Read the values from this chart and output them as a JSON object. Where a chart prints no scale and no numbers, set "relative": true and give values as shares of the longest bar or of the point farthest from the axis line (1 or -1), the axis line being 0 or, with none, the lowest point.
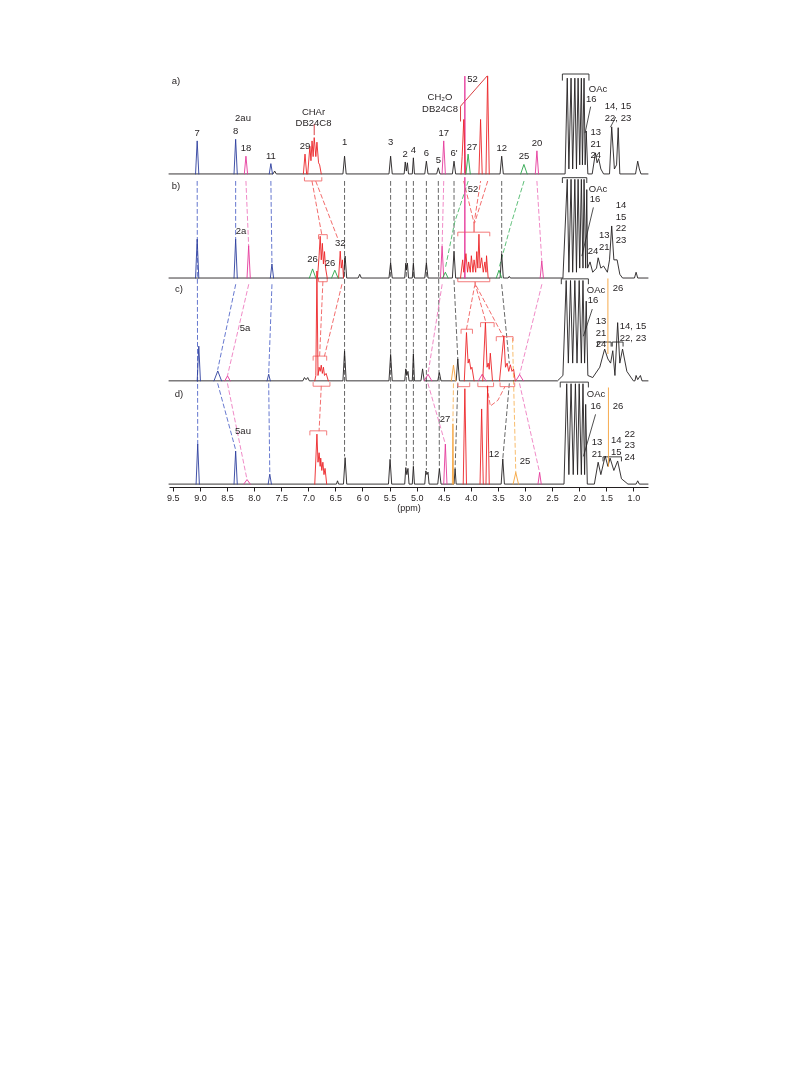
{
  "chart_data": {
    "type": "line",
    "relative": true,
    "xlabel": "(ppm)",
    "xlim": [
      9.57,
      0.73
    ],
    "xticks": [
      9.5,
      {
        "value": 9,
        "label": "9.0"
      },
      8.5,
      {
        "value": 8,
        "label": "8.0"
      },
      7.5,
      {
        "value": 7,
        "label": "7.0"
      },
      6.5,
      {
        "value": 6,
        "label": "6 0"
      },
      5.5,
      {
        "value": 5,
        "label": "5.0"
      },
      4.5,
      {
        "value": 4,
        "label": "4.0"
      },
      3.5,
      {
        "value": 3,
        "label": "3.0"
      },
      2.5,
      {
        "value": 2,
        "label": "2.0"
      },
      1.5,
      {
        "value": 1,
        "label": "1.0"
      }
    ],
    "tick_labels": "x",
    "series": [
      {
        "color": "#555555",
        "line_style": "dashed",
        "x": [
          6.33,
          6.33,
          null,
          5.48,
          5.48,
          null,
          5.19,
          5.19,
          null,
          5.06,
          5.06,
          null,
          4.82,
          4.82,
          null,
          4.6,
          4.58,
          null,
          4.31,
          4.31,
          null,
          3.43,
          3.43
        ],
        "values": [
          0.74,
          0.075,
          null,
          0.74,
          0.07,
          null,
          0.74,
          0.05,
          null,
          0.74,
          0.053,
          null,
          0.74,
          0.042,
          null,
          0.74,
          0.044,
          null,
          0.74,
          0.571,
          null,
          0.74,
          0.564
        ]
      },
      {
        "color": "#565656",
        "line_style": "dashed",
        "x": [
          4.31,
          4.24,
          null,
          3.43,
          3.29
        ],
        "values": [
          0.5,
          0.31,
          null,
          0.49,
          0.3
        ]
      },
      {
        "color": "#575757",
        "line_style": "dashed",
        "x": [
          4.24,
          4.29,
          null,
          3.29,
          3.41
        ],
        "values": [
          0.25,
          0.044,
          null,
          0.25,
          0.068
        ]
      },
      {
        "color": "#5468c8",
        "line_style": "dashed",
        "x": [
          9.05,
          9.04,
          null,
          8.34,
          8.34,
          null,
          7.69,
          7.67
        ],
        "values": [
          0.74,
          0.104,
          null,
          0.74,
          0.6,
          null,
          0.74,
          0.54
        ]
      },
      {
        "color": "#5569c9",
        "line_style": "dashed",
        "x": [
          8.34,
          8.67,
          null,
          7.67,
          7.73
        ],
        "values": [
          0.49,
          0.285,
          null,
          0.49,
          0.275
        ]
      },
      {
        "color": "#566aca",
        "line_style": "dashed",
        "x": [
          8.67,
          8.34,
          null,
          7.73,
          7.71
        ],
        "values": [
          0.25,
          0.09,
          null,
          0.25,
          0.031
        ]
      },
      {
        "color": "#ee7cbf",
        "line_style": "dashed",
        "x": [
          8.15,
          8.1,
          null,
          4.5,
          4.53,
          null,
          2.78,
          2.69
        ],
        "values": [
          0.74,
          0.584,
          null,
          0.74,
          0.583,
          null,
          0.74,
          0.547
        ]
      },
      {
        "color": "#ee7dc0",
        "line_style": "dashed",
        "x": [
          8.1,
          8.49,
          null,
          4.53,
          4.79,
          null,
          2.69,
          3.1
        ],
        "values": [
          0.49,
          0.27,
          null,
          0.49,
          0.274,
          null,
          0.49,
          0.272
        ]
      },
      {
        "color": "#ee7ec1",
        "line_style": "dashed",
        "x": [
          8.49,
          8.13,
          null,
          4.79,
          4.47,
          null,
          3.1,
          2.73
        ],
        "values": [
          0.25,
          0.018,
          null,
          0.25,
          0.104,
          null,
          0.25,
          0.035
        ]
      },
      {
        "color": "#f05a5a",
        "line_style": "dashed",
        "x": [
          6.93,
          6.75,
          null,
          4.13,
          3.94,
          3.82
        ],
        "values": [
          0.74,
          0.611,
          null,
          0.74,
          0.639,
          0.74
        ]
      },
      {
        "color": "#f05b5b",
        "line_style": "dashed",
        "x": [
          6.86,
          6.45,
          null,
          3.69,
          3.93
        ],
        "values": [
          0.74,
          0.6,
          null,
          0.74,
          0.639
        ]
      },
      {
        "color": "#f05c5c",
        "line_style": "dashed",
        "x": [
          6.73,
          6.79,
          null,
          6.38,
          6.7,
          null,
          4.08,
          3.93,
          3.91,
          3.72
        ],
        "values": [
          0.497,
          0.317,
          null,
          0.49,
          0.317,
          null,
          0.382,
          0.487,
          0.487,
          0.398
        ]
      },
      {
        "color": "#f05d5d",
        "line_style": "dashed",
        "x": [
          3.9,
          3.4
        ],
        "values": [
          0.487,
          0.364
        ]
      },
      {
        "color": "#f05e5e",
        "line_style": "dashed",
        "x": [
          6.76,
          6.8,
          null,
          3.7,
          3.64,
          3.5,
          3.37
        ],
        "values": [
          0.244,
          0.136,
          null,
          0.243,
          0.196,
          0.21,
          0.243
        ]
      },
      {
        "color": "#4cb86a",
        "line_style": "dashed",
        "x": [
          4.05,
          4.3,
          4.47,
          null,
          3.02,
          3.25,
          3.48
        ],
        "values": [
          0.74,
          0.64,
          0.53,
          null,
          0.74,
          0.64,
          0.53
        ]
      },
      {
        "color": "#f7b55e",
        "line_style": "dashed",
        "x": [
          4.32,
          4.33,
          null,
          3.23,
          3.17
        ],
        "values": [
          0.25,
          0.16,
          null,
          0.36,
          0.035
        ]
      },
      {
        "color": "#262626",
        "x": [
          2.31,
          2.31,
          1.82,
          1.82
        ],
        "values": [
          0.985,
          1.0,
          1.0,
          0.985
        ]
      },
      {
        "color": "#272727",
        "x": [
          2.31,
          2.31,
          1.86,
          1.86
        ],
        "values": [
          0.737,
          0.749,
          0.749,
          0.737
        ]
      },
      {
        "color": "#282828",
        "x": [
          2.33,
          2.33,
          1.83,
          1.83,
          null,
          1.66,
          1.66,
          1.41,
          1.41,
          null,
          1.39,
          1.39,
          1.19,
          1.19
        ],
        "values": [
          0.492,
          0.504,
          0.504,
          0.492,
          null,
          0.341,
          0.351,
          0.351,
          0.341,
          null,
          0.341,
          0.351,
          0.351,
          0.341
        ]
      },
      {
        "color": "#292929",
        "x": [
          2.35,
          2.35,
          1.83,
          1.83,
          null,
          1.56,
          1.56,
          1.22,
          1.22
        ],
        "values": [
          0.242,
          0.254,
          0.254,
          0.242,
          null,
          0.063,
          0.073,
          0.073,
          0.063
        ]
      },
      {
        "color": "#f26a6a",
        "x": [
          7.07,
          7.07,
          6.75,
          6.75
        ],
        "values": [
          0.749,
          0.741,
          0.741,
          0.749
        ]
      },
      {
        "color": "#f26b6b",
        "x": [
          6.81,
          6.81,
          6.65,
          6.65,
          null,
          4.24,
          4.24,
          3.94,
          3.94,
          3.94,
          3.65,
          3.65
        ],
        "values": [
          0.601,
          0.611,
          0.611,
          0.601,
          null,
          0.608,
          0.617,
          0.617,
          0.639,
          0.617,
          0.617,
          0.608
        ]
      },
      {
        "color": "#f26c6c",
        "x": [
          6.81,
          6.81,
          6.65,
          6.65,
          null,
          4.24,
          4.24,
          3.92,
          3.92,
          3.92,
          3.65,
          3.65
        ],
        "values": [
          0.505,
          0.497,
          0.497,
          0.505,
          null,
          0.505,
          0.497,
          0.497,
          0.487,
          0.497,
          0.497,
          0.505
        ]
      },
      {
        "color": "#f26d6d",
        "x": [
          6.91,
          6.91,
          6.66,
          6.66,
          null,
          4.18,
          4.18,
          3.97,
          3.97,
          null,
          3.82,
          3.82,
          3.57,
          3.57,
          null,
          3.53,
          3.53,
          3.22,
          3.22
        ],
        "values": [
          0.307,
          0.317,
          0.317,
          0.307,
          null,
          0.372,
          0.382,
          0.382,
          0.372,
          null,
          0.388,
          0.398,
          0.398,
          0.388,
          null,
          0.354,
          0.364,
          0.364,
          0.354
        ]
      },
      {
        "color": "#f26e6e",
        "x": [
          6.91,
          6.91,
          6.6,
          6.6,
          null,
          4.24,
          4.24,
          4.02,
          4.02,
          null,
          3.87,
          3.87,
          3.58,
          3.58,
          null,
          3.46,
          3.46,
          3.19,
          3.19
        ],
        "values": [
          0.253,
          0.244,
          0.244,
          0.253,
          null,
          0.252,
          0.243,
          0.243,
          0.252,
          null,
          0.252,
          0.243,
          0.243,
          0.252,
          null,
          0.252,
          0.243,
          0.243,
          0.252
        ]
      },
      {
        "color": "#f26f6f",
        "x": [
          6.97,
          6.97,
          6.66,
          6.66
        ],
        "values": [
          0.126,
          0.136,
          0.136,
          0.126
        ]
      },
      {
        "color": "#3b3b3b",
        "x": [
          1.79,
          1.89,
          null,
          1.33,
          1.42,
          null,
          1.74,
          1.95,
          null,
          1.76,
          1.92,
          null,
          1.7,
          1.92
        ],
        "values": [
          0.92,
          0.858,
          null,
          0.895,
          0.872,
          null,
          0.676,
          0.56,
          null,
          0.43,
          0.366,
          null,
          0.175,
          0.075
        ]
      },
      {
        "color": "#d42a2e",
        "x": [
          6.89,
          6.89,
          null,
          4.19,
          4.19,
          3.7
        ],
        "values": [
          0.853,
          0.878,
          null,
          0.886,
          0.922,
          0.995
        ]
      },
      {
        "color": "#231f20",
        "x": [
          9.57,
          7.65,
          7.62,
          7.59,
          6.36,
          6.33,
          6.3,
          5.51,
          5.48,
          5.45,
          5.23,
          5.21,
          5.19,
          5.17,
          5.15,
          5.08,
          5.06,
          5.04,
          4.85,
          4.82,
          4.79,
          4.63,
          4.6,
          4.57,
          4.34,
          4.31,
          4.28,
          3.46,
          3.43,
          3.4,
          2.26,
          2.22,
          2.19,
          2.15,
          2.12,
          2.08,
          2.05,
          2.02,
          1.99,
          1.96,
          1.94,
          1.91,
          1.89,
          1.87,
          1.84,
          1.76,
          1.7,
          1.67,
          1.64,
          1.6,
          1.55,
          1.44,
          1.4,
          1.35,
          1.31,
          1.28,
          1.25,
          0.96,
          0.92,
          0.89,
          0.86,
          0.73
        ],
        "values": [
          0.758,
          0.758,
          0.765,
          0.758,
          0.758,
          0.801,
          0.758,
          0.758,
          0.801,
          0.758,
          0.758,
          0.787,
          0.765,
          0.785,
          0.758,
          0.758,
          0.797,
          0.758,
          0.758,
          0.789,
          0.758,
          0.758,
          0.773,
          0.758,
          0.758,
          0.789,
          0.758,
          0.758,
          0.801,
          0.758,
          0.758,
          0.99,
          0.77,
          0.99,
          0.77,
          0.99,
          0.77,
          0.99,
          0.78,
          0.99,
          0.78,
          0.99,
          0.78,
          0.862,
          0.758,
          0.758,
          0.809,
          0.785,
          0.795,
          0.77,
          0.758,
          0.758,
          0.872,
          0.77,
          0.78,
          0.87,
          0.758,
          0.758,
          0.789,
          0.77,
          0.758,
          0.758
        ]
      },
      {
        "color": "#231f20",
        "x": [
          9.57,
          6.35,
          6.32,
          6.29,
          6.08,
          6.05,
          6.02,
          5.51,
          5.48,
          5.45,
          5.22,
          5.2,
          5.19,
          5.17,
          5.15,
          5.08,
          5.06,
          5.04,
          4.85,
          4.82,
          4.79,
          4.34,
          4.31,
          4.28,
          3.46,
          3.43,
          3.4,
          3.31,
          3.29,
          3.27,
          2.3,
          2.22,
          2.19,
          2.15,
          2.12,
          2.08,
          2.05,
          2.02,
          1.99,
          1.96,
          1.93,
          1.91,
          1.88,
          1.86,
          1.845,
          1.8,
          1.75,
          1.68,
          1.65,
          1.6,
          1.55,
          1.48,
          1.44,
          1.4,
          1.36,
          1.3,
          1.25,
          1.2,
          0.98,
          0.95,
          0.92,
          0.73
        ],
        "values": [
          0.506,
          0.506,
          0.559,
          0.506,
          0.506,
          0.515,
          0.506,
          0.506,
          0.543,
          0.506,
          0.506,
          0.542,
          0.525,
          0.542,
          0.506,
          0.506,
          0.542,
          0.506,
          0.506,
          0.543,
          0.506,
          0.506,
          0.571,
          0.506,
          0.506,
          0.564,
          0.506,
          0.506,
          0.51,
          0.506,
          0.506,
          0.745,
          0.52,
          0.745,
          0.52,
          0.745,
          0.52,
          0.745,
          0.53,
          0.745,
          0.53,
          0.745,
          0.53,
          0.72,
          0.53,
          0.545,
          0.52,
          0.53,
          0.555,
          0.53,
          0.535,
          0.52,
          0.55,
          0.632,
          0.55,
          0.55,
          0.515,
          0.506,
          0.506,
          0.52,
          0.506,
          0.506
        ]
      },
      {
        "color": "#231f20",
        "x": [
          9.57,
          7.1,
          7.07,
          7.04,
          7.01,
          6.98,
          6.36,
          6.33,
          6.3,
          5.51,
          5.48,
          5.45,
          5.22,
          5.2,
          5.18,
          5.16,
          5.14,
          5.08,
          5.06,
          5.04,
          4.92,
          4.89,
          4.86,
          4.61,
          4.58,
          4.55,
          4.27,
          4.24,
          4.21,
          2.4,
          2.3,
          2.24,
          2.2,
          2.16,
          2.12,
          2.08,
          2.04,
          2.0,
          1.96,
          1.93,
          1.9,
          1.87,
          1.84,
          1.75,
          1.62,
          1.53,
          1.47,
          1.42,
          1.38,
          1.34,
          1.29,
          1.25,
          1.2,
          1.12,
          1.0,
          0.97,
          0.95,
          0.92,
          0.87,
          0.84,
          0.73
        ],
        "values": [
          0.257,
          0.257,
          0.265,
          0.26,
          0.265,
          0.257,
          0.257,
          0.329,
          0.257,
          0.257,
          0.321,
          0.257,
          0.257,
          0.286,
          0.27,
          0.28,
          0.257,
          0.257,
          0.322,
          0.257,
          0.257,
          0.286,
          0.257,
          0.257,
          0.277,
          0.257,
          0.257,
          0.31,
          0.257,
          0.257,
          0.27,
          0.5,
          0.3,
          0.5,
          0.3,
          0.5,
          0.3,
          0.5,
          0.3,
          0.5,
          0.3,
          0.45,
          0.27,
          0.265,
          0.29,
          0.334,
          0.31,
          0.3,
          0.33,
          0.27,
          0.398,
          0.3,
          0.334,
          0.28,
          0.257,
          0.257,
          0.27,
          0.26,
          0.27,
          0.257,
          0.257
        ]
      },
      {
        "color": "#231f20",
        "x": [
          9.57,
          6.48,
          6.46,
          6.44,
          6.35,
          6.32,
          6.29,
          5.52,
          5.49,
          5.46,
          5.22,
          5.2,
          5.18,
          5.16,
          5.14,
          5.08,
          5.06,
          5.04,
          4.85,
          4.83,
          4.81,
          4.79,
          4.77,
          4.61,
          4.58,
          4.55,
          4.31,
          4.29,
          4.27,
          3.44,
          3.41,
          3.38,
          2.28,
          2.23,
          2.19,
          2.15,
          2.11,
          2.07,
          2.03,
          2.0,
          1.96,
          1.93,
          1.9,
          1.88,
          1.85,
          1.72,
          1.65,
          1.6,
          1.52,
          1.47,
          1.43,
          1.36,
          1.29,
          1.22,
          1.1,
          0.95,
          0.92,
          0.89,
          0.73
        ],
        "values": [
          0.007,
          0.007,
          0.015,
          0.007,
          0.007,
          0.071,
          0.007,
          0.007,
          0.067,
          0.007,
          0.007,
          0.047,
          0.03,
          0.045,
          0.007,
          0.007,
          0.05,
          0.007,
          0.007,
          0.039,
          0.03,
          0.036,
          0.007,
          0.007,
          0.044,
          0.007,
          0.007,
          0.044,
          0.007,
          0.007,
          0.068,
          0.007,
          0.007,
          0.25,
          0.03,
          0.25,
          0.03,
          0.25,
          0.03,
          0.25,
          0.03,
          0.25,
          0.03,
          0.2,
          0.007,
          0.007,
          0.06,
          0.03,
          0.075,
          0.05,
          0.07,
          0.04,
          0.063,
          0.02,
          0.007,
          0.007,
          0.015,
          0.007,
          0.007
        ]
      },
      {
        "color": "#2c3e9e",
        "x": [
          9.08,
          9.05,
          9.02,
          null,
          8.37,
          8.34,
          8.31,
          null,
          7.72,
          7.69,
          7.66,
          null,
          9.08,
          9.05,
          9.02,
          null,
          8.37,
          8.34,
          8.31,
          null,
          7.7,
          7.67,
          7.64,
          null,
          9.05,
          9.02,
          8.99,
          null,
          8.74,
          8.67,
          8.6,
          null,
          7.76,
          7.73,
          7.7,
          null,
          9.07,
          9.04,
          9.01,
          null,
          8.37,
          8.34,
          8.31,
          null,
          7.74,
          7.71,
          7.68
        ],
        "values": [
          0.758,
          0.838,
          0.758,
          null,
          0.758,
          0.842,
          0.758,
          null,
          0.758,
          0.783,
          0.758,
          null,
          0.506,
          0.6,
          0.506,
          null,
          0.506,
          0.6,
          0.506,
          null,
          0.506,
          0.54,
          0.506,
          null,
          0.257,
          0.341,
          0.257,
          null,
          0.257,
          0.281,
          0.257,
          null,
          0.257,
          0.273,
          0.257,
          null,
          0.007,
          0.104,
          0.007,
          null,
          0.007,
          0.087,
          0.007,
          null,
          0.007,
          0.031,
          0.007
        ]
      },
      {
        "color": "#e5399b",
        "x": [
          8.18,
          8.15,
          8.12,
          null,
          4.53,
          4.5,
          4.47,
          null,
          4.115,
          4.11,
          4.105,
          null,
          2.81,
          2.78,
          2.75,
          null,
          8.13,
          8.1,
          8.07,
          null,
          4.56,
          4.53,
          4.5,
          null,
          4.115,
          4.11,
          4.105,
          null,
          2.72,
          2.69,
          2.66,
          null,
          8.54,
          8.49,
          8.44,
          null,
          4.86,
          4.79,
          4.72,
          null,
          3.86,
          3.79,
          3.72,
          null,
          3.17,
          3.1,
          3.03,
          null,
          8.19,
          8.13,
          8.07,
          null,
          4.5,
          4.47,
          4.44,
          null,
          2.76,
          2.73,
          2.7
        ],
        "values": [
          0.758,
          0.801,
          0.758,
          null,
          0.758,
          0.838,
          0.758,
          null,
          0.758,
          0.995,
          0.758,
          null,
          0.758,
          0.814,
          0.758,
          null,
          0.506,
          0.584,
          0.506,
          null,
          0.506,
          0.583,
          0.506,
          null,
          0.506,
          0.75,
          0.506,
          null,
          0.506,
          0.547,
          0.506,
          null,
          0.257,
          0.269,
          0.257,
          null,
          0.257,
          0.273,
          0.257,
          null,
          0.257,
          0.273,
          0.257,
          null,
          0.257,
          0.272,
          0.257,
          null,
          0.007,
          0.018,
          0.007,
          null,
          0.007,
          0.104,
          0.007,
          null,
          0.007,
          0.035,
          0.007
        ]
      },
      {
        "color": "#ec2427",
        "x": [
          7.09,
          7.06,
          7.03,
          null,
          7.01,
          6.97,
          6.95,
          6.93,
          6.91,
          6.89,
          6.86,
          6.84,
          6.81,
          6.79,
          6.76,
          null,
          4.18,
          4.16,
          4.13,
          4.1,
          null,
          3.85,
          3.82,
          3.79,
          null,
          3.72,
          3.69,
          3.66,
          null,
          6.83,
          6.8,
          6.78,
          6.76,
          6.74,
          6.72,
          6.7,
          6.68,
          6.65,
          null,
          6.44,
          6.41,
          6.39,
          6.37,
          6.35,
          null,
          4.19,
          4.15,
          4.13,
          4.09,
          4.06,
          4.04,
          4.01,
          3.99,
          3.96,
          3.94,
          3.91,
          3.89,
          3.87,
          3.85,
          3.83,
          3.8,
          3.77,
          3.74,
          3.72,
          3.71,
          3.68,
          null,
          6.88,
          6.86,
          6.84,
          6.82,
          6.8,
          6.78,
          6.76,
          6.74,
          6.72,
          6.7,
          6.67,
          6.63,
          null,
          4.12,
          4.08,
          4.05,
          4.03,
          4.0,
          3.98,
          3.94,
          null,
          3.78,
          3.73,
          3.7,
          3.68,
          3.66,
          3.64,
          3.6,
          null,
          3.47,
          3.39,
          3.36,
          3.33,
          3.3,
          3.27,
          3.24,
          3.21,
          3.18,
          null,
          6.88,
          6.84,
          6.82,
          6.8,
          6.78,
          6.77,
          6.75,
          6.73,
          6.71,
          6.69,
          6.66,
          null,
          4.14,
          4.11,
          4.08,
          null,
          3.83,
          3.8,
          3.77,
          null,
          3.72,
          3.69,
          3.66
        ],
        "values": [
          0.758,
          0.806,
          0.758,
          null,
          0.758,
          0.825,
          0.79,
          0.838,
          0.8,
          0.846,
          0.8,
          0.835,
          0.785,
          0.78,
          0.758,
          null,
          0.758,
          0.8,
          0.89,
          0.758,
          null,
          0.758,
          0.89,
          0.758,
          null,
          0.758,
          0.995,
          0.758,
          null,
          0.506,
          0.56,
          0.607,
          0.55,
          0.59,
          0.54,
          0.57,
          0.53,
          0.506,
          null,
          0.506,
          0.571,
          0.53,
          0.55,
          0.506,
          null,
          0.506,
          0.55,
          0.52,
          0.565,
          0.52,
          0.545,
          0.52,
          0.56,
          0.52,
          0.55,
          0.52,
          0.57,
          0.53,
          0.612,
          0.53,
          0.555,
          0.52,
          0.545,
          0.52,
          0.56,
          0.506,
          null,
          0.257,
          0.27,
          0.523,
          0.27,
          0.29,
          0.28,
          0.295,
          0.275,
          0.29,
          0.27,
          0.275,
          0.257,
          null,
          0.257,
          0.374,
          0.3,
          0.31,
          0.285,
          0.29,
          0.257,
          null,
          0.257,
          0.398,
          0.29,
          0.3,
          0.285,
          0.324,
          0.257,
          null,
          0.257,
          0.366,
          0.29,
          0.3,
          0.28,
          0.296,
          0.28,
          0.285,
          0.257,
          null,
          0.007,
          0.128,
          0.06,
          0.083,
          0.05,
          0.07,
          0.04,
          0.06,
          0.03,
          0.045,
          0.007,
          null,
          0.007,
          0.238,
          0.007,
          null,
          0.007,
          0.189,
          0.007,
          null,
          0.007,
          0.245,
          0.007
        ]
      },
      {
        "color": "#29a54a",
        "x": [
          4.09,
          4.05,
          4.01,
          null,
          3.08,
          3.02,
          2.96,
          null,
          6.98,
          6.92,
          6.86,
          null,
          6.57,
          6.51,
          6.45,
          null,
          4.52,
          4.47,
          4.42,
          null,
          3.53,
          3.48,
          3.43
        ],
        "values": [
          0.758,
          0.806,
          0.758,
          null,
          0.758,
          0.781,
          0.758,
          null,
          0.506,
          0.528,
          0.506,
          null,
          0.506,
          0.525,
          0.506,
          null,
          0.506,
          0.52,
          0.506,
          null,
          0.506,
          0.525,
          0.506
        ]
      },
      {
        "color": "#f5a33a",
        "x": [
          4.34,
          4.33,
          4.32,
          null,
          3.22,
          3.17,
          3.12,
          null,
          1.47,
          1.47
        ],
        "values": [
          0.007,
          0.153,
          0.007,
          null,
          0.007,
          0.035,
          0.007,
          null,
          0.323,
          0.504
        ]
      },
      {
        "color": "#f5a23c",
        "x": [
          4.36,
          4.32,
          4.28,
          null,
          1.46,
          1.46
        ],
        "values": [
          0.257,
          0.295,
          0.257,
          null,
          0.05,
          0.24
        ]
      }
    ],
    "annotations": [
      "a)",
      "2au",
      "CHAr\nDB24C8",
      "CH₂O\nDB24C8",
      "52",
      "27",
      "OAc",
      "16",
      "13\n21\n24",
      "14, 15\n22, 23",
      "b)",
      "2a",
      "26",
      "26",
      "52",
      "OAc",
      "16",
      "14\n15\n22\n23",
      "13\n21",
      "24",
      "c)",
      "5a",
      "OAc",
      "16",
      "26",
      "13\n21\n24",
      "14, 15\n22, 23",
      "d)",
      "5au",
      "27",
      "12",
      "25",
      "OAc",
      "16",
      "26",
      "13\n21",
      "14\n15",
      "22\n23\n24",
      "3",
      "1",
      {
        "text": "7",
        "x": 9.05,
        "y": 0.838
      },
      {
        "text": "8",
        "x": 8.34,
        "y": 0.842
      },
      {
        "text": "18",
        "x": 8.15,
        "y": 0.801
      },
      {
        "text": "11",
        "x": 7.69,
        "y": 0.783
      },
      {
        "text": "29",
        "x": 7.06,
        "y": 0.806
      },
      {
        "text": "2",
        "x": 5.21,
        "y": 0.787
      },
      {
        "text": "4",
        "x": 5.06,
        "y": 0.797
      },
      {
        "text": "6",
        "x": 4.82,
        "y": 0.789
      },
      {
        "text": "5",
        "x": 4.6,
        "y": 0.773
      },
      {
        "text": "17",
        "x": 4.5,
        "y": 0.838
      },
      {
        "text": "6'",
        "x": 4.31,
        "y": 0.789
      },
      {
        "text": "12",
        "x": 3.43,
        "y": 0.801
      },
      {
        "text": "25",
        "x": 3.02,
        "y": 0.781
      },
      {
        "text": "20",
        "x": 2.78,
        "y": 0.814
      },
      {
        "text": "32",
        "x": 6.41,
        "y": 0.571
      }
    ]
  }
}
